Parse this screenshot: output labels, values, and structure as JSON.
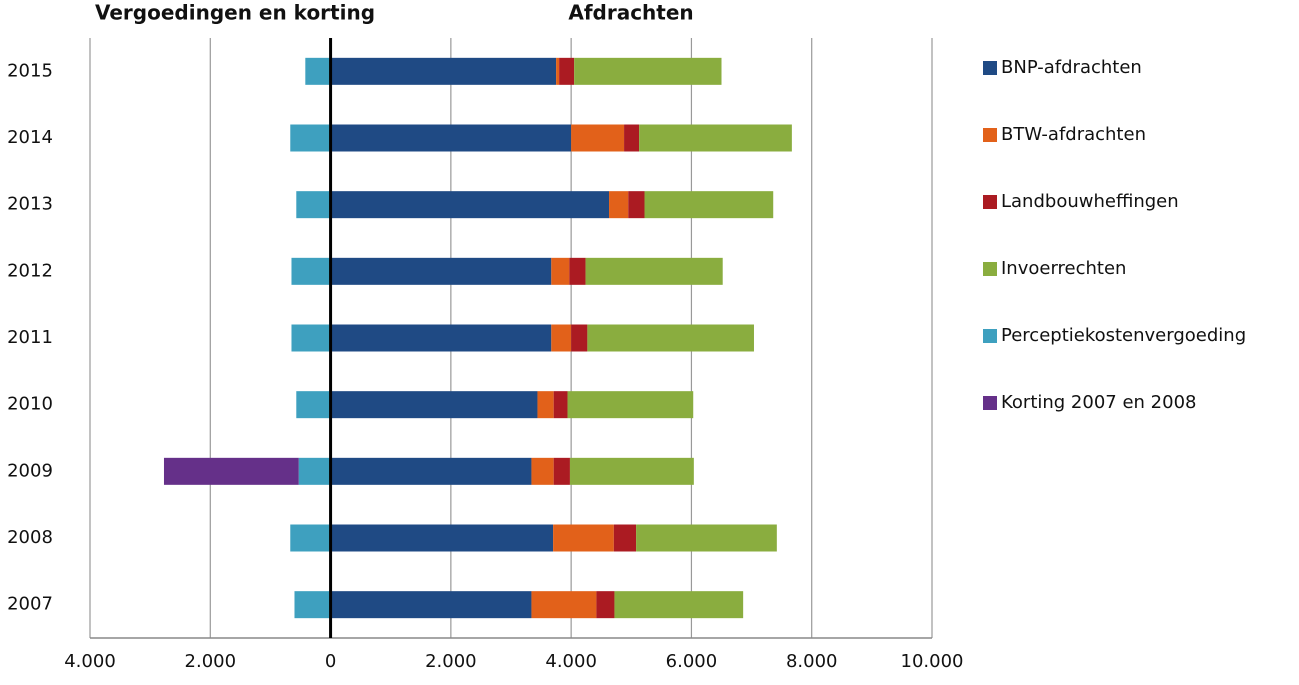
{
  "chart_data": {
    "type": "stacked-bar-horizontal",
    "annotations": [
      "Vergoedingen en korting",
      "Afdrachten"
    ],
    "categories": [
      "2015",
      "2014",
      "2013",
      "2012",
      "2011",
      "2010",
      "2009",
      "2008",
      "2007"
    ],
    "series": [
      {
        "name": "BNP-afdrachten",
        "color": "#1f4a84",
        "values": [
          3750,
          4000,
          4630,
          3670,
          3670,
          3440,
          3340,
          3700,
          3340
        ]
      },
      {
        "name": "BTW-afdrachten",
        "color": "#e2611a",
        "values": [
          50,
          880,
          320,
          300,
          330,
          270,
          370,
          1010,
          1080
        ]
      },
      {
        "name": "Landbouwheffingen",
        "color": "#ab1b22",
        "values": [
          250,
          250,
          270,
          270,
          270,
          230,
          270,
          370,
          300
        ]
      },
      {
        "name": "Invoerrechten",
        "color": "#8aad3f",
        "values": [
          2450,
          2540,
          2140,
          2280,
          2770,
          2090,
          2060,
          2340,
          2140
        ]
      },
      {
        "name": "Perceptiekostenvergoeding",
        "color": "#3ea0bf",
        "values": [
          -420,
          -670,
          -570,
          -650,
          -650,
          -570,
          -530,
          -670,
          -600
        ]
      },
      {
        "name": "Korting 2007 en 2008",
        "color": "#653089",
        "values": [
          null,
          null,
          null,
          null,
          null,
          null,
          -2240,
          null,
          null
        ]
      }
    ],
    "xlim": [
      -4000,
      10000
    ],
    "xticks": [
      {
        "value": -4000,
        "label": "4.000"
      },
      {
        "value": -2000,
        "label": "2.000"
      },
      0,
      {
        "value": 2000,
        "label": "2.000"
      },
      {
        "value": 4000,
        "label": "4.000"
      },
      {
        "value": 6000,
        "label": "6.000"
      },
      {
        "value": 8000,
        "label": "8.000"
      },
      {
        "value": 10000,
        "label": "10.000"
      }
    ],
    "grid": true,
    "legend": "right"
  }
}
